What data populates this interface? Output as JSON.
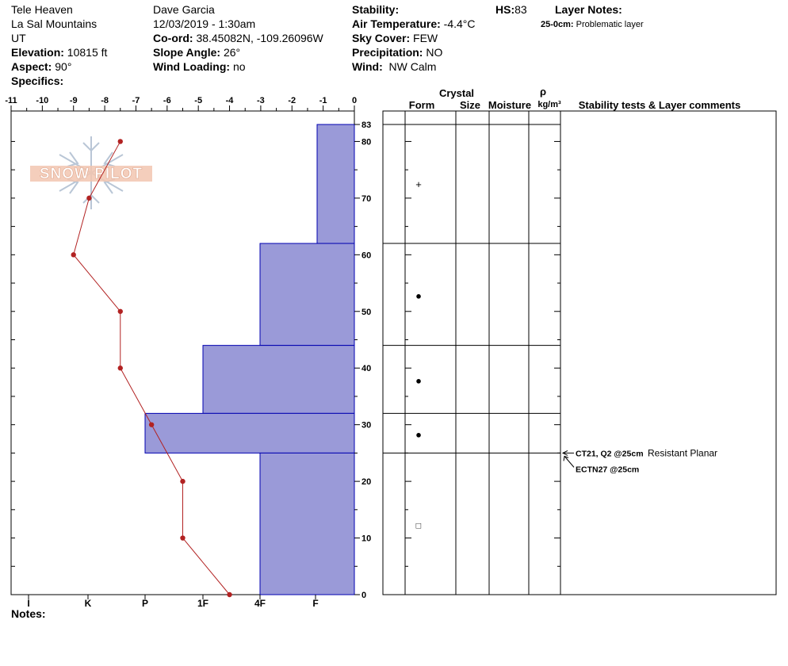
{
  "header": {
    "site": "Tele Heaven",
    "range": "La Sal Mountains",
    "state": "UT",
    "elevation_label": "Elevation:",
    "elevation": "10815 ft",
    "aspect_label": "Aspect:",
    "aspect": "90°",
    "specifics_label": "Specifics:",
    "observer": "Dave Garcia",
    "datetime": "12/03/2019 - 1:30am",
    "coord_label": "Co-ord:",
    "coord": "38.45082N, -109.26096W",
    "slope_label": "Slope Angle:",
    "slope": "26°",
    "wind_loading_label": "Wind Loading:",
    "wind_loading": "no",
    "stability_label": "Stability:",
    "air_temp_label": "Air Temperature:",
    "air_temp": "-4.4°C",
    "sky_label": "Sky Cover:",
    "sky": "FEW",
    "precip_label": "Precipitation:",
    "precip": "NO",
    "wind_label": "Wind:",
    "wind": "NW Calm",
    "hs_label": "HS:",
    "hs": "83",
    "layer_notes_label": "Layer Notes:",
    "layer_note_depth": "25-0cm:",
    "layer_note_text": "Problematic layer"
  },
  "logo": {
    "text": "SNOW PILOT"
  },
  "notes_label": "Notes:",
  "table_headers": {
    "crystal": "Crystal",
    "form": "Form",
    "size": "Size",
    "moisture": "Moisture",
    "rho": "ρ",
    "density_unit": "kg/m³",
    "stability": "Stability tests & Layer comments"
  },
  "stability_tests": [
    {
      "test": "CT21, Q2 @25cm",
      "comment": "Resistant Planar"
    },
    {
      "test": "ECTN27 @25cm",
      "comment": ""
    }
  ],
  "chart_data": {
    "type": "snow-profile",
    "temperature_axis": {
      "ticks": [
        -11,
        -10,
        -9,
        -8,
        -7,
        -6,
        -5,
        -4,
        -3,
        -2,
        -1,
        0
      ],
      "range": [
        -11,
        0
      ],
      "unit": "°C"
    },
    "height_axis": {
      "ticks": [
        0,
        10,
        20,
        30,
        40,
        50,
        60,
        70,
        80,
        83
      ],
      "range": [
        0,
        83
      ],
      "unit": "cm"
    },
    "hardness_axis": {
      "ticks": [
        "I",
        "K",
        "P",
        "1F",
        "4F",
        "F"
      ]
    },
    "temperature_profile": [
      {
        "height": 80,
        "temp": -7.5
      },
      {
        "height": 70,
        "temp": -8.5
      },
      {
        "height": 60,
        "temp": -9
      },
      {
        "height": 50,
        "temp": -7.5
      },
      {
        "height": 40,
        "temp": -7.5
      },
      {
        "height": 30,
        "temp": -6.5
      },
      {
        "height": 20,
        "temp": -5.5
      },
      {
        "height": 10,
        "temp": -5.5
      },
      {
        "height": 0,
        "temp": -4
      }
    ],
    "layers": [
      {
        "top": 83,
        "bottom": 62,
        "hardness": "F",
        "form": "+"
      },
      {
        "top": 62,
        "bottom": 44,
        "hardness": "4F",
        "form": "●"
      },
      {
        "top": 44,
        "bottom": 32,
        "hardness": "1F",
        "form": "●"
      },
      {
        "top": 32,
        "bottom": 25,
        "hardness": "P-",
        "form": "●"
      },
      {
        "top": 25,
        "bottom": 0,
        "hardness": "4F",
        "form": "□"
      }
    ],
    "colors": {
      "hardness_fill": "#9a9ad8",
      "hardness_stroke": "#0000b0",
      "temperature": "#b22222"
    }
  }
}
